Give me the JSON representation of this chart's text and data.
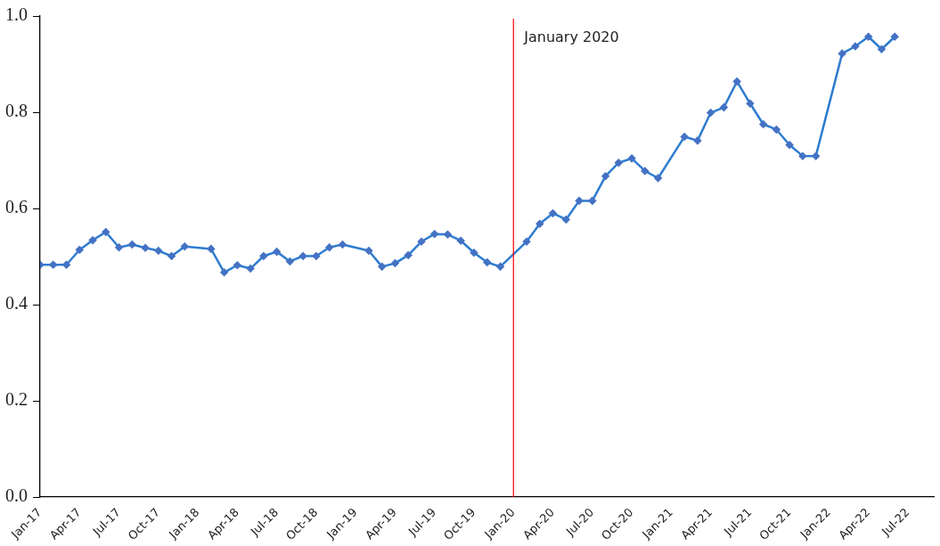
{
  "chart_data": {
    "type": "line",
    "marker": "diamond",
    "line_style": "solid",
    "grid": false,
    "legend": false,
    "xlim": [
      "2017-01",
      "2022-09"
    ],
    "ylim": [
      0,
      1.0
    ],
    "yticks": [
      {
        "value": 0,
        "label": "0.0"
      },
      {
        "value": 0.2,
        "label": "0.2"
      },
      {
        "value": 0.4,
        "label": "0.4"
      },
      {
        "value": 0.6,
        "label": "0.6"
      },
      {
        "value": 0.8,
        "label": "0.8"
      },
      {
        "value": 1.0,
        "label": "1.0"
      }
    ],
    "xticks": [
      {
        "value": "2017-01",
        "label": "Jan-17"
      },
      {
        "value": "2017-04",
        "label": "Apr-17"
      },
      {
        "value": "2017-07",
        "label": "Jul-17"
      },
      {
        "value": "2017-10",
        "label": "Oct-17"
      },
      {
        "value": "2018-01",
        "label": "Jan-18"
      },
      {
        "value": "2018-04",
        "label": "Apr-18"
      },
      {
        "value": "2018-07",
        "label": "Jul-18"
      },
      {
        "value": "2018-10",
        "label": "Oct-18"
      },
      {
        "value": "2019-01",
        "label": "Jan-19"
      },
      {
        "value": "2019-04",
        "label": "Apr-19"
      },
      {
        "value": "2019-07",
        "label": "Jul-19"
      },
      {
        "value": "2019-10",
        "label": "Oct-19"
      },
      {
        "value": "2020-01",
        "label": "Jan-20"
      },
      {
        "value": "2020-04",
        "label": "Apr-20"
      },
      {
        "value": "2020-07",
        "label": "Jul-20"
      },
      {
        "value": "2020-10",
        "label": "Oct-20"
      },
      {
        "value": "2021-01",
        "label": "Jan-21"
      },
      {
        "value": "2021-04",
        "label": "Apr-21"
      },
      {
        "value": "2021-07",
        "label": "Jul-21"
      },
      {
        "value": "2021-10",
        "label": "Oct-21"
      },
      {
        "value": "2022-01",
        "label": "Jan-22"
      },
      {
        "value": "2022-04",
        "label": "Apr-22"
      },
      {
        "value": "2022-07",
        "label": "Jul-22"
      }
    ],
    "ref_lines": [
      {
        "axis": "x",
        "value": "2020-01",
        "label": "January 2020",
        "color": "#ff0000",
        "line_style": "solid"
      }
    ],
    "series": [
      {
        "color": "#2e7cd0",
        "x": [
          "2017-01",
          "2017-02",
          "2017-03",
          "2017-04",
          "2017-05",
          "2017-06",
          "2017-07",
          "2017-08",
          "2017-09",
          "2017-10",
          "2017-11",
          "2017-12",
          "2018-02",
          "2018-03",
          "2018-04",
          "2018-05",
          "2018-06",
          "2018-07",
          "2018-08",
          "2018-09",
          "2018-10",
          "2018-11",
          "2018-12",
          "2019-02",
          "2019-03",
          "2019-04",
          "2019-05",
          "2019-06",
          "2019-07",
          "2019-08",
          "2019-09",
          "2019-10",
          "2019-11",
          "2019-12",
          "2020-02",
          "2020-03",
          "2020-04",
          "2020-05",
          "2020-06",
          "2020-07",
          "2020-08",
          "2020-09",
          "2020-10",
          "2020-11",
          "2020-12",
          "2021-02",
          "2021-03",
          "2021-04",
          "2021-05",
          "2021-06",
          "2021-07",
          "2021-08",
          "2021-09",
          "2021-10",
          "2021-11",
          "2021-12",
          "2022-02",
          "2022-03",
          "2022-04",
          "2022-05",
          "2022-06"
        ],
        "values": [
          0.483,
          0.483,
          0.483,
          0.514,
          0.534,
          0.551,
          0.519,
          0.525,
          0.518,
          0.512,
          0.501,
          0.521,
          0.516,
          0.467,
          0.482,
          0.475,
          0.501,
          0.51,
          0.49,
          0.501,
          0.501,
          0.519,
          0.525,
          0.512,
          0.479,
          0.486,
          0.503,
          0.531,
          0.547,
          0.546,
          0.533,
          0.508,
          0.488,
          0.479,
          0.531,
          0.568,
          0.59,
          0.577,
          0.616,
          0.616,
          0.667,
          0.695,
          0.704,
          0.678,
          0.663,
          0.749,
          0.741,
          0.799,
          0.81,
          0.864,
          0.818,
          0.775,
          0.764,
          0.732,
          0.709,
          0.709,
          0.922,
          0.937,
          0.957,
          0.931,
          0.957
        ]
      }
    ]
  }
}
